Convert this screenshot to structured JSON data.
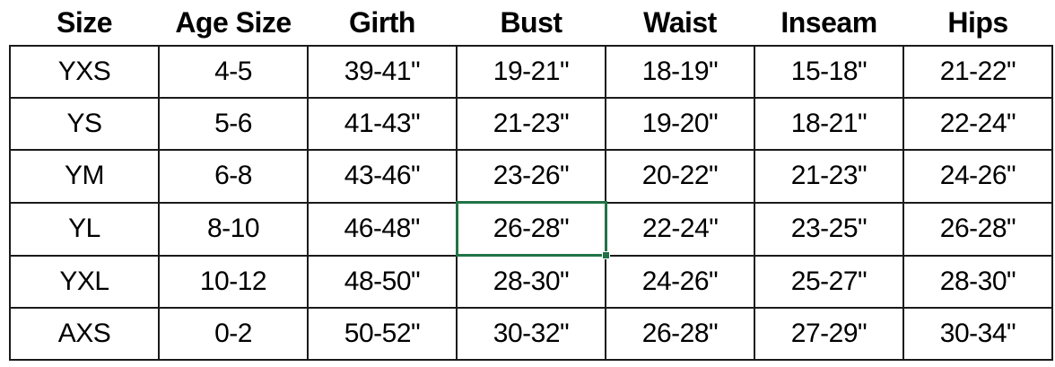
{
  "table": {
    "headers": [
      "Size",
      "Age Size",
      "Girth",
      "Bust",
      "Waist",
      "Inseam",
      "Hips"
    ],
    "rows": [
      [
        "YXS",
        "4-5",
        "39-41\"",
        "19-21\"",
        "18-19\"",
        "15-18\"",
        "21-22\""
      ],
      [
        "YS",
        "5-6",
        "41-43\"",
        "21-23\"",
        "19-20\"",
        "18-21\"",
        "22-24\""
      ],
      [
        "YM",
        "6-8",
        "43-46\"",
        "23-26\"",
        "20-22\"",
        "21-23\"",
        "24-26\""
      ],
      [
        "YL",
        "8-10",
        "46-48\"",
        "26-28\"",
        "22-24\"",
        "23-25\"",
        "26-28\""
      ],
      [
        "YXL",
        "10-12",
        "48-50\"",
        "28-30\"",
        "24-26\"",
        "25-27\"",
        "28-30\""
      ],
      [
        "AXS",
        "0-2",
        "50-52\"",
        "30-32\"",
        "26-28\"",
        "27-29\"",
        "30-34\""
      ]
    ],
    "selection": {
      "row_index": 3,
      "col_index": 3,
      "selected_value": "26-28\"",
      "selection_color": "#217346"
    },
    "gridline_color": "#1a1a1a"
  }
}
